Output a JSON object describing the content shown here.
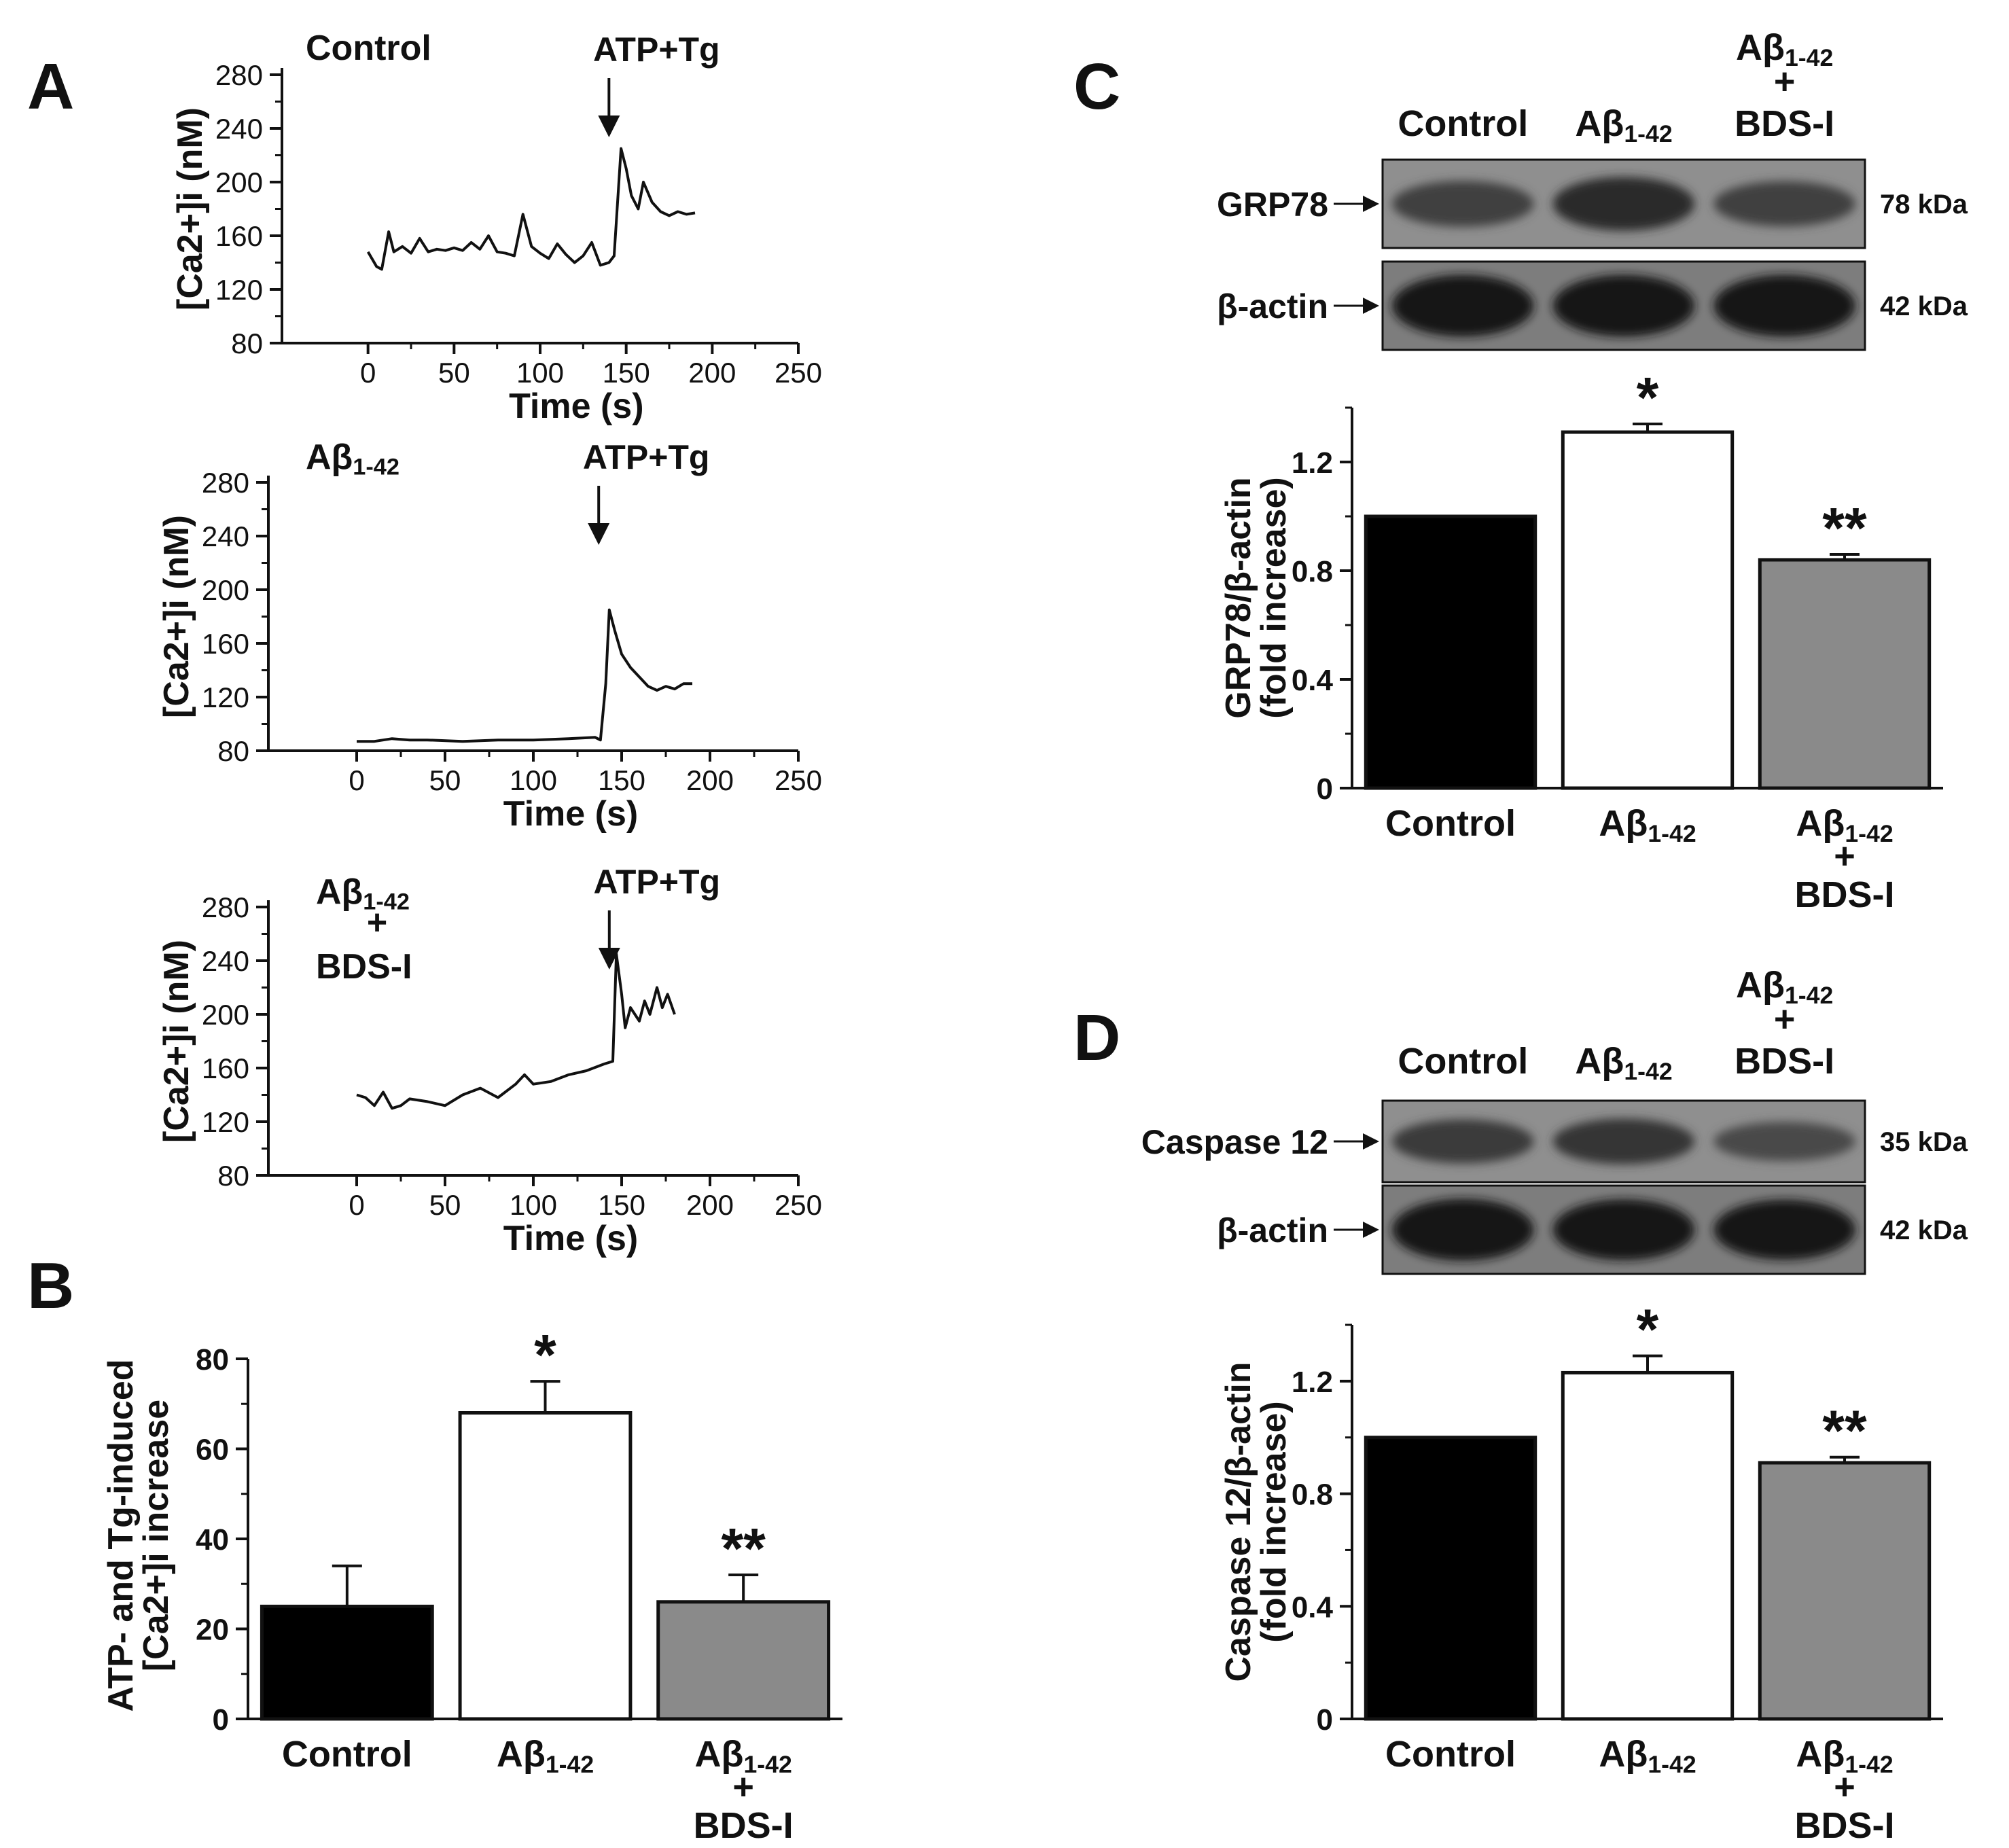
{
  "colors": {
    "control": "#000000",
    "abeta": "#ffffff",
    "abeta_bds": "#8a8a8a",
    "ink": "#111111"
  },
  "panels": {
    "A": "A",
    "B": "B",
    "C": "C",
    "D": "D"
  },
  "abeta": {
    "base": "Aβ",
    "sub": "1-42"
  },
  "plus": "+",
  "bds": "BDS-I",
  "chart_data": [
    {
      "id": "A1",
      "type": "line",
      "condition": "Control",
      "annotation": "ATP+Tg",
      "annotation_x": 140,
      "xlabel": "Time (s)",
      "ylabel": "[Ca2+]i (nM)",
      "xlim": [
        -50,
        250
      ],
      "ylim": [
        80,
        280
      ],
      "xticks": [
        0,
        50,
        100,
        150,
        200,
        250
      ],
      "yticks": [
        80,
        120,
        160,
        200,
        240,
        280
      ],
      "x": [
        0,
        5,
        8,
        12,
        15,
        20,
        25,
        30,
        35,
        40,
        45,
        50,
        55,
        60,
        65,
        70,
        75,
        80,
        85,
        90,
        95,
        100,
        105,
        110,
        115,
        120,
        125,
        130,
        135,
        140,
        143,
        147,
        150,
        153,
        157,
        160,
        165,
        170,
        175,
        180,
        185,
        190
      ],
      "y": [
        148,
        137,
        135,
        163,
        148,
        152,
        147,
        158,
        148,
        150,
        149,
        151,
        149,
        155,
        150,
        160,
        148,
        147,
        145,
        176,
        152,
        147,
        143,
        154,
        146,
        140,
        145,
        155,
        138,
        140,
        145,
        225,
        210,
        190,
        180,
        200,
        185,
        178,
        175,
        178,
        176,
        177
      ]
    },
    {
      "id": "A2",
      "type": "line",
      "condition_sub": true,
      "annotation": "ATP+Tg",
      "annotation_x": 137,
      "xlabel": "Time (s)",
      "ylabel": "[Ca2+]i (nM)",
      "xlim": [
        -50,
        250
      ],
      "ylim": [
        80,
        280
      ],
      "xticks": [
        0,
        50,
        100,
        150,
        200,
        250
      ],
      "yticks": [
        80,
        120,
        160,
        200,
        240,
        280
      ],
      "x": [
        0,
        10,
        20,
        30,
        40,
        60,
        80,
        100,
        120,
        135,
        138,
        141,
        143,
        146,
        150,
        155,
        160,
        165,
        170,
        175,
        180,
        185,
        190
      ],
      "y": [
        87,
        87,
        89,
        88,
        88,
        87,
        88,
        88,
        89,
        90,
        88,
        130,
        185,
        170,
        152,
        142,
        135,
        128,
        125,
        128,
        126,
        130,
        130
      ]
    },
    {
      "id": "A3",
      "type": "line",
      "condition_sub": true,
      "condition_extra": "BDS-I",
      "annotation": "ATP+Tg",
      "annotation_x": 143,
      "xlabel": "Time (s)",
      "ylabel": "[Ca2+]i (nM)",
      "xlim": [
        -50,
        250
      ],
      "ylim": [
        80,
        280
      ],
      "xticks": [
        0,
        50,
        100,
        150,
        200,
        250
      ],
      "yticks": [
        80,
        120,
        160,
        200,
        240,
        280
      ],
      "x": [
        0,
        5,
        10,
        15,
        20,
        25,
        30,
        40,
        50,
        60,
        70,
        80,
        90,
        95,
        100,
        110,
        120,
        130,
        140,
        145,
        147,
        150,
        152,
        155,
        160,
        163,
        166,
        170,
        173,
        176,
        180
      ],
      "y": [
        140,
        138,
        132,
        142,
        130,
        132,
        137,
        135,
        132,
        140,
        145,
        138,
        148,
        155,
        148,
        150,
        155,
        158,
        163,
        165,
        245,
        215,
        190,
        205,
        195,
        210,
        200,
        220,
        205,
        215,
        200
      ]
    },
    {
      "id": "B",
      "type": "bar",
      "categories": [
        "Control",
        "Aβ1-42",
        "Aβ1-42 + BDS-I"
      ],
      "values": [
        25,
        68,
        26
      ],
      "errors": [
        9,
        7,
        6
      ],
      "significance": [
        "",
        "*",
        "**"
      ],
      "ylabel_line1": "ATP- and Tg-induced",
      "ylabel_line2": "[Ca2+]i increase",
      "ylim": [
        0,
        80
      ],
      "yticks": [
        0,
        20,
        40,
        60,
        80
      ]
    },
    {
      "id": "C",
      "type": "bar",
      "categories": [
        "Control",
        "Aβ1-42",
        "Aβ1-42 + BDS-I"
      ],
      "values": [
        1.0,
        1.31,
        0.84
      ],
      "errors": [
        0,
        0.03,
        0.02
      ],
      "significance": [
        "",
        "*",
        "**"
      ],
      "ylabel_line1": "GRP78/β-actin",
      "ylabel_line2": "(fold increase)",
      "ylim": [
        0,
        1.4
      ],
      "yticks": [
        0,
        0.4,
        0.8,
        1.2
      ],
      "ytick_labels": [
        "0",
        "0.4",
        "0.8",
        "1.2"
      ]
    },
    {
      "id": "D",
      "type": "bar",
      "categories": [
        "Control",
        "Aβ1-42",
        "Aβ1-42 + BDS-I"
      ],
      "values": [
        1.0,
        1.23,
        0.91
      ],
      "errors": [
        0,
        0.06,
        0.02
      ],
      "significance": [
        "",
        "*",
        "**"
      ],
      "ylabel_line1": "Caspase 12/β-actin",
      "ylabel_line2": "(fold increase)",
      "ylim": [
        0,
        1.4
      ],
      "yticks": [
        0,
        0.4,
        0.8,
        1.2
      ],
      "ytick_labels": [
        "0",
        "0.4",
        "0.8",
        "1.2"
      ]
    }
  ],
  "blots": {
    "C": {
      "lanes": [
        "Control",
        "Aβ1-42",
        "Aβ1-42 + BDS-I"
      ],
      "rows": [
        {
          "label": "GRP78",
          "kda": "78 kDa",
          "intensity": [
            0.5,
            0.72,
            0.48
          ]
        },
        {
          "label": "β-actin",
          "kda": "42 kDa",
          "intensity": [
            0.95,
            0.95,
            0.95
          ]
        }
      ]
    },
    "D": {
      "lanes": [
        "Control",
        "Aβ1-42",
        "Aβ1-42 + BDS-I"
      ],
      "rows": [
        {
          "label": "Caspase 12",
          "kda": "35 kDa",
          "intensity": [
            0.55,
            0.6,
            0.4
          ]
        },
        {
          "label": "β-actin",
          "kda": "42 kDa",
          "intensity": [
            0.95,
            0.92,
            0.9
          ]
        }
      ]
    }
  }
}
